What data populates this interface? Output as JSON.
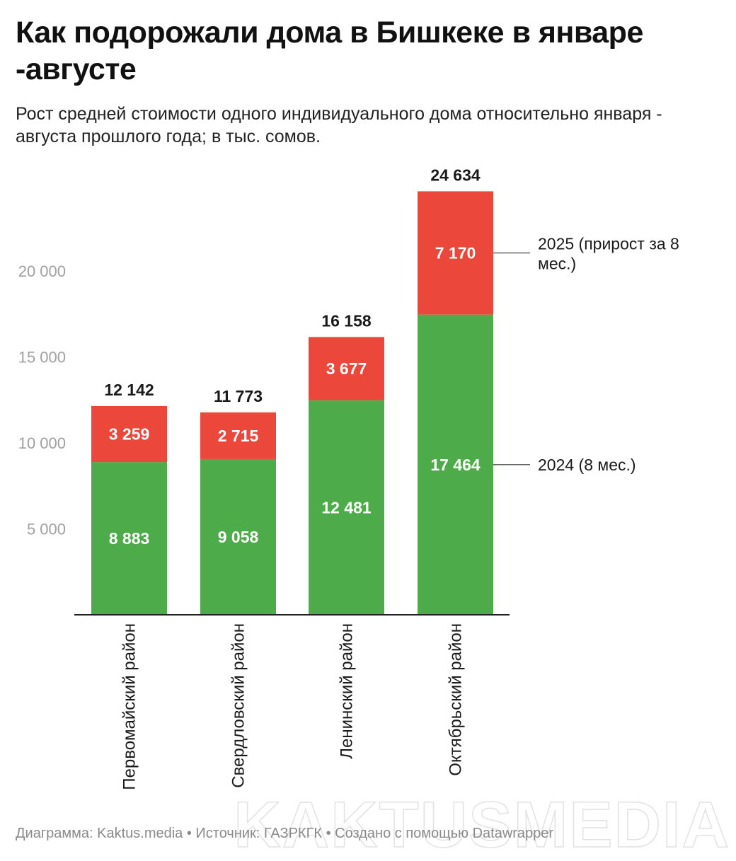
{
  "title": "Как подорожали дома в Бишкеке в январе -августе",
  "subtitle": "Рост средней стоимости одного индивидуального дома относительно января - августа прошлого года; в тыс. сомов.",
  "footer": "Диаграмма: Kaktus.media • Источник: ГАЗРКГК • Создано с помощью Datawrapper",
  "watermark": "KAKTUSMEDIA",
  "colors": {
    "base": "#4dab49",
    "growth": "#eb473b",
    "axis": "#222222",
    "tick_text": "#a0a0a0"
  },
  "chart_data": {
    "type": "bar",
    "stacked": true,
    "categories": [
      "Первомайский район",
      "Свердловский район",
      "Ленинский район",
      "Октябрьский район"
    ],
    "series": [
      {
        "name": "2024 (8 мес.)",
        "values": [
          8883,
          9058,
          12481,
          17464
        ],
        "labels": [
          "8 883",
          "9 058",
          "12 481",
          "17 464"
        ],
        "color": "#4dab49"
      },
      {
        "name": "2025 (прирост за 8 мес.)",
        "values": [
          3259,
          2715,
          3677,
          7170
        ],
        "labels": [
          "3 259",
          "2 715",
          "3 677",
          "7 170"
        ],
        "color": "#eb473b"
      }
    ],
    "totals": [
      12142,
      11773,
      16158,
      24634
    ],
    "total_labels": [
      "12 142",
      "11 773",
      "16 158",
      "24 634"
    ],
    "y_ticks": [
      5000,
      10000,
      15000,
      20000
    ],
    "y_tick_labels": [
      "5 000",
      "10 000",
      "15 000",
      "20 000"
    ],
    "ylim": [
      0,
      25000
    ],
    "grid": false,
    "legend_placement": "right, inline next to last bar",
    "legend_lines": [
      [
        "2025 (прирост за 8",
        "мес.)"
      ],
      [
        "2024 (8 мес.)"
      ]
    ]
  }
}
